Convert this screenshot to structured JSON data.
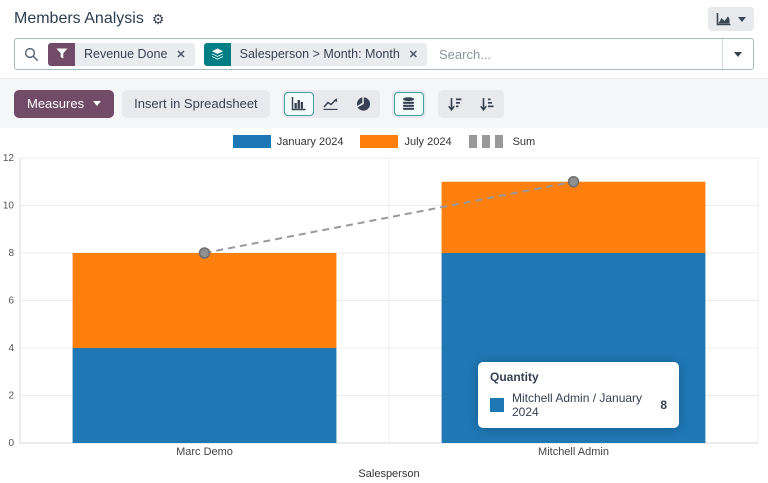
{
  "header": {
    "title": "Members Analysis"
  },
  "icons": {
    "gear": "⚙",
    "close": "✕"
  },
  "search": {
    "placeholder": "Search...",
    "facets": [
      {
        "kind": "filter",
        "label": "Revenue Done",
        "color": "#714b67"
      },
      {
        "kind": "groupby",
        "label": "Salesperson > Month: Month",
        "color": "#017e84"
      }
    ]
  },
  "toolbar": {
    "measures": "Measures",
    "insert_in_spreadsheet": "Insert in Spreadsheet",
    "chart_type_active": "bar",
    "stacked_active": true
  },
  "tooltip": {
    "title": "Quantity",
    "rows": [
      {
        "label": "Mitchell Admin / January 2024",
        "value": "8",
        "color": "#1f77b4"
      }
    ]
  },
  "chart_data": {
    "type": "bar",
    "stacked": true,
    "title": "",
    "xlabel": "Salesperson",
    "ylabel": "",
    "ylim": [
      0,
      12
    ],
    "yticks": [
      0,
      2,
      4,
      6,
      8,
      10,
      12
    ],
    "grid": true,
    "legend_position": "top",
    "categories": [
      "Marc Demo",
      "Mitchell Admin"
    ],
    "series": [
      {
        "name": "January 2024",
        "type": "bar",
        "color": "#1f77b4",
        "values": [
          4,
          8
        ]
      },
      {
        "name": "July 2024",
        "type": "bar",
        "color": "#ff7f0e",
        "values": [
          4,
          3
        ]
      },
      {
        "name": "Sum",
        "type": "line",
        "color": "#999999",
        "dashed": true,
        "values": [
          8,
          11
        ]
      }
    ]
  }
}
